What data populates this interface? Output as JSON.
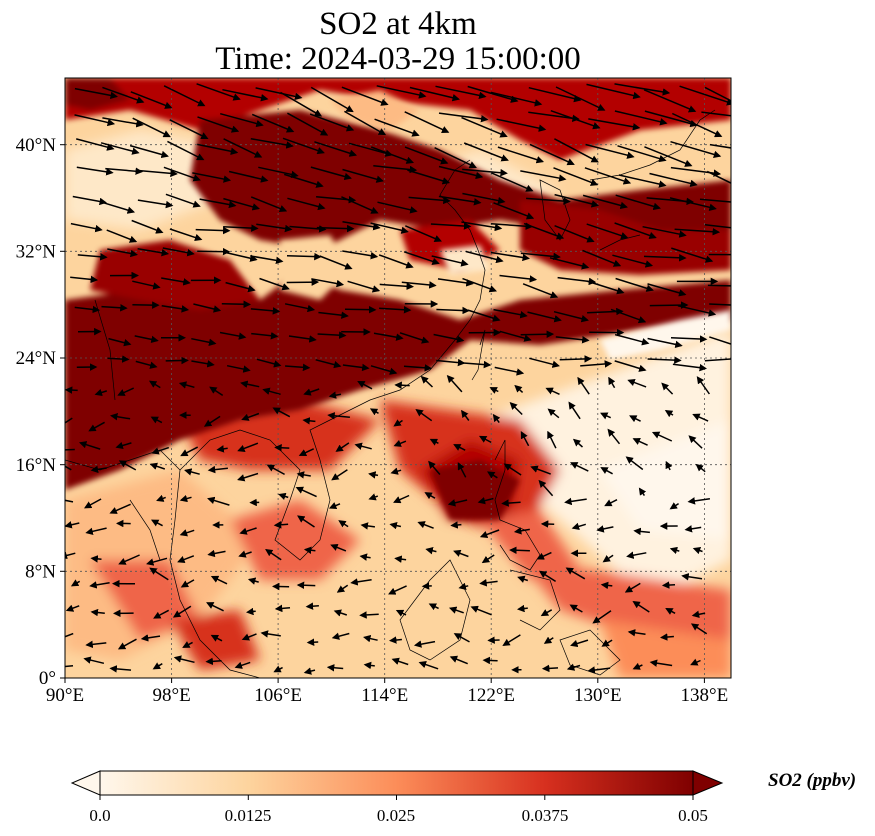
{
  "title": "SO2 at 4km",
  "subtitle": "Time: 2024-03-29 15:00:00",
  "lon_ticks": [
    "90°E",
    "98°E",
    "106°E",
    "114°E",
    "122°E",
    "130°E",
    "138°E"
  ],
  "lat_ticks": [
    "0°",
    "8°N",
    "16°N",
    "24°N",
    "32°N",
    "40°N"
  ],
  "colorbar": {
    "label": "SO2 (ppbv)",
    "ticks": [
      "0.0",
      "0.0125",
      "0.025",
      "0.0375",
      "0.05"
    ],
    "range": [
      0.0,
      0.05
    ],
    "extend": "both",
    "colormap": "OrRd",
    "colors": [
      "#fff7ec",
      "#fdd49e",
      "#fc8d59",
      "#d7301f",
      "#7f0000"
    ]
  },
  "map": {
    "extent": {
      "lon": [
        90,
        140
      ],
      "lat": [
        0,
        45
      ]
    },
    "gridlines": "dotted",
    "variable": "SO2 mixing ratio",
    "overlay": "wind vectors (black arrows)"
  }
}
